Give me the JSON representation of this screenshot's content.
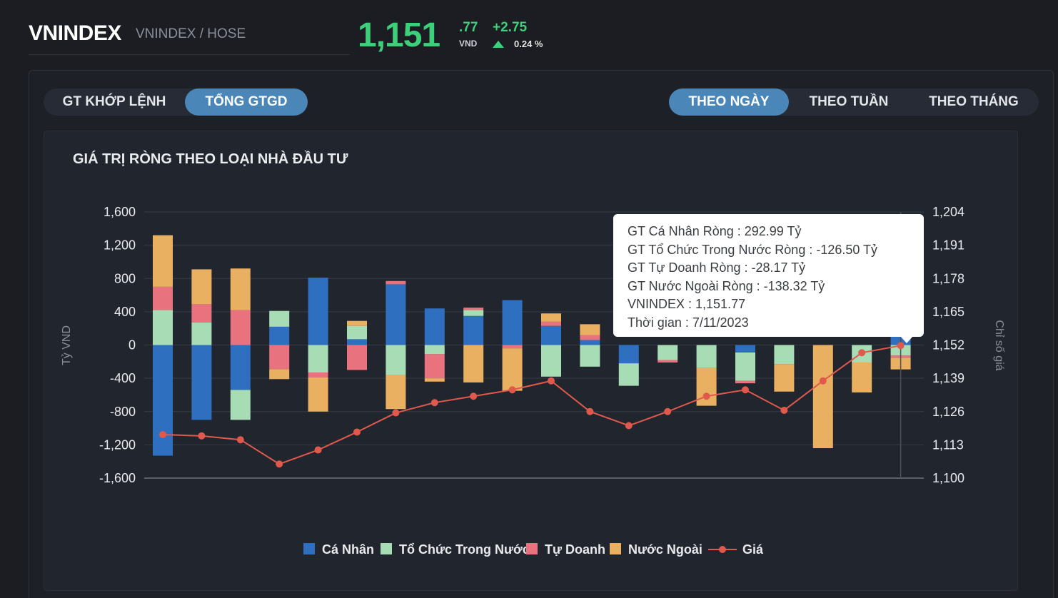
{
  "header": {
    "symbol": "VNINDEX",
    "subtitle": "VNINDEX / HOSE",
    "price_int": "1,151",
    "price_dec": ".77",
    "price_unit": "VND",
    "change": "+2.75",
    "change_pct": "0.24 %",
    "accent_color": "#3ecf7a"
  },
  "toggles": {
    "value_type": [
      {
        "label": "GT KHỚP LỆNH",
        "active": false
      },
      {
        "label": "TỔNG GTGD",
        "active": true
      }
    ],
    "period": [
      {
        "label": "THEO NGÀY",
        "active": true
      },
      {
        "label": "THEO TUẦN",
        "active": false
      },
      {
        "label": "THEO THÁNG",
        "active": false
      }
    ]
  },
  "tooltip": {
    "lines": [
      "GT Cá Nhân Ròng  : 292.99 Tỷ",
      "GT Tổ Chức Trong Nước Ròng : -126.50 Tỷ",
      "GT Tự Doanh Ròng : -28.17 Tỷ",
      "GT Nước Ngoài Ròng : -138.32 Tỷ",
      "VNINDEX : 1,151.77",
      "Thời gian : 7/11/2023"
    ]
  },
  "chart_data": {
    "type": "bar",
    "title": "GIÁ TRỊ RÒNG THEO LOẠI NHÀ ĐẦU TƯ",
    "ylabel": "Tỷ VND",
    "y2label": "Chỉ số giá",
    "ylim": [
      -1600,
      1600
    ],
    "y2lim": [
      1100,
      1204
    ],
    "yticks": [
      "1,600",
      "1,200",
      "800",
      "400",
      "0",
      "-400",
      "-800",
      "-1,200",
      "-1,600"
    ],
    "y2ticks": [
      "1,204",
      "1,191",
      "1,178",
      "1,165",
      "1,152",
      "1,139",
      "1,126",
      "1,113",
      "1,100"
    ],
    "stacked": true,
    "series": [
      {
        "name": "Cá Nhân",
        "color": "#2f6fbf",
        "values": [
          -1330,
          -900,
          -540,
          220,
          810,
          70,
          730,
          440,
          350,
          540,
          230,
          60,
          -220,
          0,
          0,
          -90,
          0,
          0,
          0,
          293
        ]
      },
      {
        "name": "Tổ Chức Trong Nước",
        "color": "#a8dcb5",
        "values": [
          420,
          270,
          -360,
          190,
          -330,
          160,
          -360,
          -110,
          70,
          0,
          -380,
          -260,
          -270,
          -180,
          -270,
          -340,
          -230,
          0,
          -210,
          -127
        ]
      },
      {
        "name": "Tự Doanh",
        "color": "#e8727d",
        "values": [
          280,
          220,
          420,
          -290,
          -60,
          -300,
          40,
          -290,
          30,
          -40,
          50,
          60,
          0,
          -30,
          0,
          -30,
          0,
          0,
          0,
          -28
        ]
      },
      {
        "name": "Nước Ngoài",
        "color": "#eab061",
        "values": [
          620,
          420,
          500,
          -120,
          -410,
          60,
          -410,
          -40,
          -450,
          -510,
          100,
          130,
          0,
          0,
          -460,
          0,
          -330,
          -1240,
          -360,
          -138
        ]
      }
    ],
    "line_series": {
      "name": "Giá",
      "color": "#e0594c",
      "values": [
        1117,
        1116.5,
        1115,
        1105.5,
        1111,
        1118,
        1125.5,
        1129.5,
        1132,
        1134.5,
        1138,
        1126,
        1120.5,
        1126,
        1132,
        1134.5,
        1126.5,
        1138,
        1149,
        1151.77
      ]
    },
    "legend": [
      "Cá Nhân",
      "Tổ Chức Trong Nước",
      "Tự Doanh",
      "Nước Ngoài",
      "Giá"
    ],
    "legend_position": "bottom"
  }
}
